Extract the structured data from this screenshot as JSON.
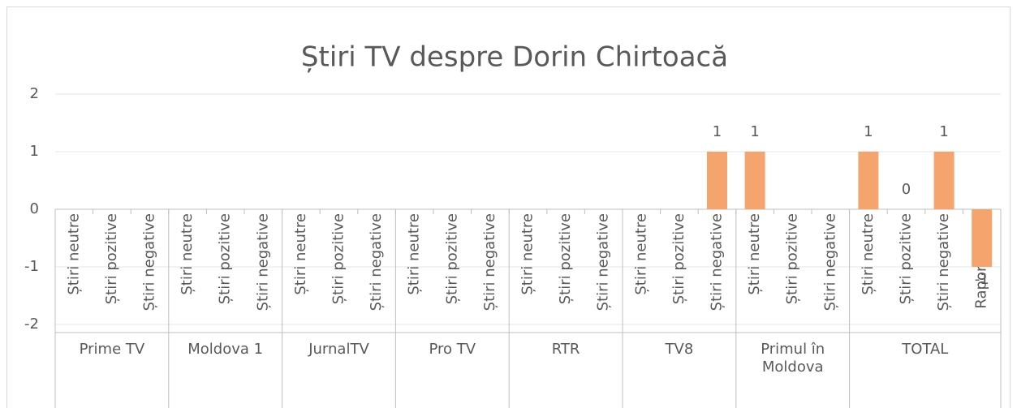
{
  "chart_data": {
    "type": "bar",
    "title": "Știri TV despre Dorin Chirtoacă",
    "color": "#f4a46c",
    "ylim": [
      -2,
      2
    ],
    "yticks": [
      -2,
      -1,
      0,
      1,
      2
    ],
    "grid": true,
    "groups": [
      {
        "label": "Prime TV",
        "categories": [
          "Știri neutre",
          "Știri pozitive",
          "Știri negative"
        ],
        "values": [
          null,
          null,
          null
        ]
      },
      {
        "label": "Moldova 1",
        "categories": [
          "Știri neutre",
          "Știri pozitive",
          "Știri negative"
        ],
        "values": [
          null,
          null,
          null
        ]
      },
      {
        "label": "JurnalTV",
        "categories": [
          "Știri neutre",
          "Știri pozitive",
          "Știri negative"
        ],
        "values": [
          null,
          null,
          null
        ]
      },
      {
        "label": "Pro TV",
        "categories": [
          "Știri neutre",
          "Știri pozitive",
          "Știri negative"
        ],
        "values": [
          null,
          null,
          null
        ]
      },
      {
        "label": "RTR",
        "categories": [
          "Știri neutre",
          "Știri pozitive",
          "Știri negative"
        ],
        "values": [
          null,
          null,
          null
        ]
      },
      {
        "label": "TV8",
        "categories": [
          "Știri neutre",
          "Știri pozitive",
          "Știri negative"
        ],
        "values": [
          null,
          null,
          1
        ]
      },
      {
        "label": "Primul în Moldova",
        "categories": [
          "Știri neutre",
          "Știri pozitive",
          "Știri negative"
        ],
        "values": [
          1,
          null,
          null
        ]
      },
      {
        "label": "TOTAL",
        "categories": [
          "Știri neutre",
          "Știri pozitive",
          "Știri negative",
          "Raport știri…"
        ],
        "values": [
          1,
          0,
          1,
          -1
        ]
      }
    ]
  }
}
